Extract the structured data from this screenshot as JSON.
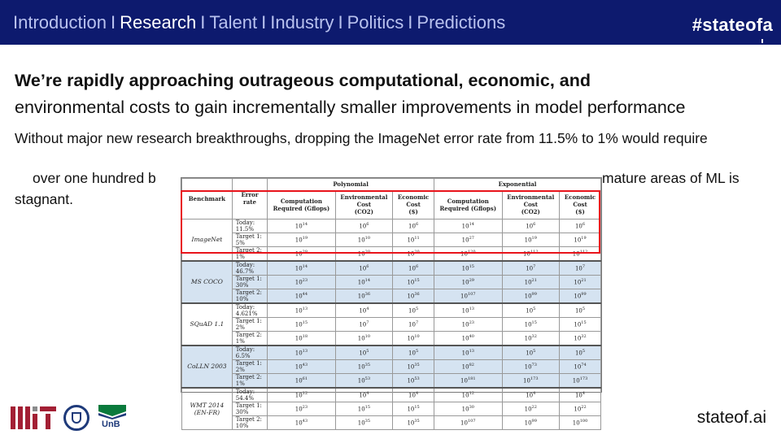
{
  "nav": {
    "items": [
      {
        "label": "Introduction",
        "active": false
      },
      {
        "label": "Research",
        "active": true
      },
      {
        "label": "Talent",
        "active": false
      },
      {
        "label": "Industry",
        "active": false
      },
      {
        "label": "Politics",
        "active": false
      },
      {
        "label": "Predictions",
        "active": false
      }
    ],
    "separator": "I",
    "hashtag": "#stateofa"
  },
  "slide": {
    "title_bold": "We’re rapidly approaching outrageous computational, economic, and",
    "title_rest": "environmental costs to gain incrementally smaller improvements in model performance",
    "bullet_line1": "Without major new research breakthroughs, dropping the ImageNet error rate from 11.5% to 1% would require",
    "bullet_line2_start": "over one hundred b",
    "bullet_line2_end": "mature areas of ML is",
    "bullet_line3": "stagnant."
  },
  "table": {
    "group_headers": {
      "polynomial": "Polynomial",
      "exponential": "Exponential"
    },
    "col_headers": {
      "benchmark": "Benchmark",
      "error_rate": "Error rate",
      "computation": "Computation Required (Gflops)",
      "environmental": "Environmental Cost",
      "env_unit": "(CO2)",
      "economic": "Economic Cost",
      "econ_unit": "($)"
    },
    "groups": [
      {
        "name": "ImageNet",
        "shaded": false,
        "rows": [
          {
            "err": "Today: 11.5%",
            "v": [
              "10",
              "14",
              "10",
              "6",
              "10",
              "6",
              "10",
              "14",
              "10",
              "6",
              "10",
              "6"
            ]
          },
          {
            "err": "Target 1: 5%",
            "v": [
              "10",
              "19",
              "10",
              "10",
              "10",
              "11",
              "10",
              "27",
              "10",
              "19",
              "10",
              "19"
            ]
          },
          {
            "err": "Target 2: 1%",
            "v": [
              "10",
              "28",
              "10",
              "20",
              "10",
              "20",
              "10",
              "120",
              "10",
              "112",
              "10",
              "112"
            ]
          }
        ]
      },
      {
        "name": "MS COCO",
        "shaded": true,
        "rows": [
          {
            "err": "Today: 46.7%",
            "v": [
              "10",
              "14",
              "10",
              "6",
              "10",
              "6",
              "10",
              "15",
              "10",
              "7",
              "10",
              "7"
            ]
          },
          {
            "err": "Target 1: 30%",
            "v": [
              "10",
              "23",
              "10",
              "14",
              "10",
              "15",
              "10",
              "29",
              "10",
              "21",
              "10",
              "21"
            ]
          },
          {
            "err": "Target 2: 10%",
            "v": [
              "10",
              "44",
              "10",
              "36",
              "10",
              "36",
              "10",
              "107",
              "10",
              "99",
              "10",
              "99"
            ]
          }
        ]
      },
      {
        "name": "SQuAD 1.1",
        "shaded": false,
        "rows": [
          {
            "err": "Today: 4.621%",
            "v": [
              "10",
              "13",
              "10",
              "4",
              "10",
              "5",
              "10",
              "13",
              "10",
              "5",
              "10",
              "5"
            ]
          },
          {
            "err": "Target 1: 2%",
            "v": [
              "10",
              "15",
              "10",
              "7",
              "10",
              "7",
              "10",
              "23",
              "10",
              "15",
              "10",
              "15"
            ]
          },
          {
            "err": "Target 2: 1%",
            "v": [
              "10",
              "18",
              "10",
              "10",
              "10",
              "10",
              "10",
              "40",
              "10",
              "32",
              "10",
              "32"
            ]
          }
        ]
      },
      {
        "name": "CoLLN 2003",
        "shaded": true,
        "rows": [
          {
            "err": "Today: 6.5%",
            "v": [
              "10",
              "13",
              "10",
              "5",
              "10",
              "5",
              "10",
              "13",
              "10",
              "5",
              "10",
              "5"
            ]
          },
          {
            "err": "Target 1: 2%",
            "v": [
              "10",
              "43",
              "10",
              "35",
              "10",
              "35",
              "10",
              "82",
              "10",
              "73",
              "10",
              "74"
            ]
          },
          {
            "err": "Target 2: 1%",
            "v": [
              "10",
              "61",
              "10",
              "53",
              "10",
              "53",
              "10",
              "181",
              "10",
              "173",
              "10",
              "173"
            ]
          }
        ]
      },
      {
        "name": "WMT 2014 (EN-FR)",
        "shaded": false,
        "rows": [
          {
            "err": "Today: 54.4%",
            "v": [
              "10",
              "12",
              "10",
              "4",
              "10",
              "4",
              "10",
              "12",
              "10",
              "4",
              "10",
              "4"
            ]
          },
          {
            "err": "Target 1: 30%",
            "v": [
              "10",
              "23",
              "10",
              "15",
              "10",
              "15",
              "10",
              "30",
              "10",
              "22",
              "10",
              "22"
            ]
          },
          {
            "err": "Target 2: 10%",
            "v": [
              "10",
              "43",
              "10",
              "35",
              "10",
              "35",
              "10",
              "107",
              "10",
              "99",
              "10",
              "100"
            ]
          }
        ]
      }
    ]
  },
  "footer": {
    "site": "stateof.ai",
    "unb": "UnB",
    "colors": {
      "mit_red": "#a31f34",
      "mit_gray": "#8a8b8c",
      "unb_blue": "#1e3a7a",
      "unb_green": "#0a7a3c"
    }
  },
  "colors": {
    "topbar": "#0d1a6e",
    "highlight": "#e8141b",
    "row_shade": "#d5e3f1"
  }
}
